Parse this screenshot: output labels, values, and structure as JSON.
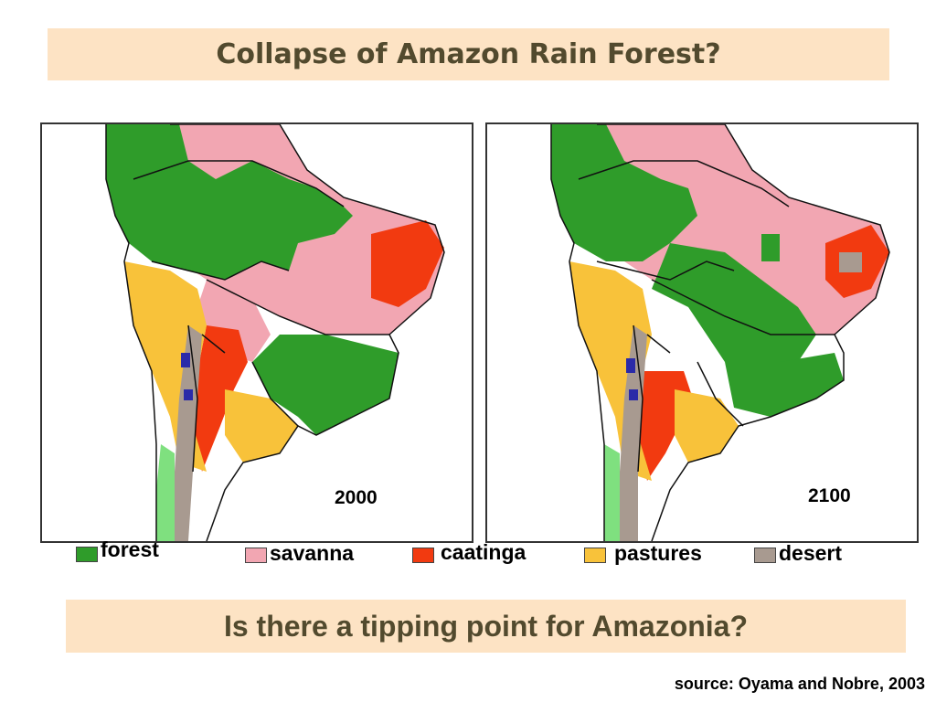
{
  "slide": {
    "title": "Collapse of Amazon Rain Forest?",
    "question": "Is there a tipping point for Amazonia?",
    "source": "source: Oyama and Nobre, 2003"
  },
  "maps": [
    {
      "year": "2000"
    },
    {
      "year": "2100"
    }
  ],
  "legend": [
    {
      "label": "forest",
      "color": "#2f9c2a"
    },
    {
      "label": "savanna",
      "color": "#f2a6b2"
    },
    {
      "label": "caatinga",
      "color": "#f23a10"
    },
    {
      "label": "pastures",
      "color": "#f8c23a"
    },
    {
      "label": "desert",
      "color": "#a89a90"
    }
  ],
  "colors": {
    "banner": "#fde3c4",
    "banner_text": "#524a2e",
    "water": "#2a2aa8",
    "light_green": "#7fe07f",
    "rock": "#a08f86"
  }
}
